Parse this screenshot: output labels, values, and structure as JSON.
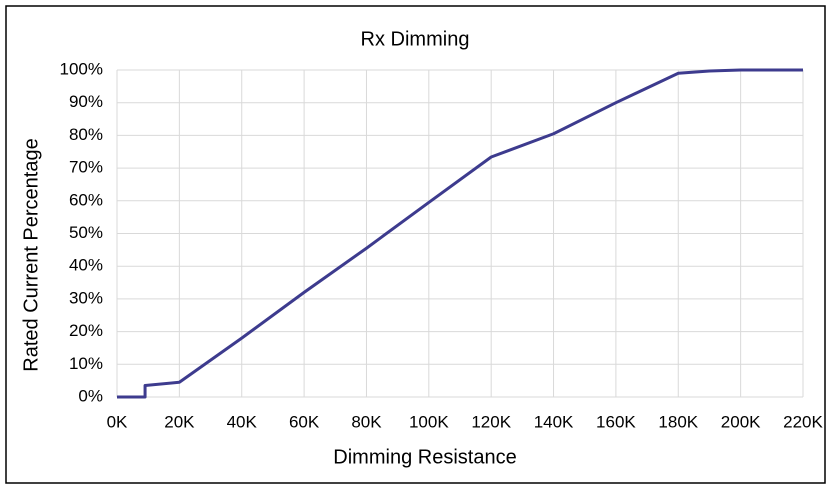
{
  "chart_data": {
    "type": "line",
    "title": "Rx Dimming",
    "xlabel": "Dimming Resistance",
    "ylabel": "Rated Current Percentage",
    "x": [
      0,
      9000,
      9000,
      20000,
      40000,
      60000,
      80000,
      100000,
      120000,
      140000,
      160000,
      180000,
      190000,
      200000,
      220000
    ],
    "series": [
      {
        "name": "Rx Dimming",
        "color": "#3d3b8e",
        "values": [
          0,
          0,
          3.5,
          4.5,
          18,
          32,
          45.5,
          59.5,
          73.4,
          80.5,
          90,
          99,
          99.7,
          100,
          100
        ]
      }
    ],
    "xlim": [
      0,
      220000
    ],
    "xticks": [
      {
        "value": 0,
        "label": "0K"
      },
      {
        "value": 20000,
        "label": "20K"
      },
      {
        "value": 40000,
        "label": "40K"
      },
      {
        "value": 60000,
        "label": "60K"
      },
      {
        "value": 80000,
        "label": "80K"
      },
      {
        "value": 100000,
        "label": "100K"
      },
      {
        "value": 120000,
        "label": "120K"
      },
      {
        "value": 140000,
        "label": "140K"
      },
      {
        "value": 160000,
        "label": "160K"
      },
      {
        "value": 180000,
        "label": "180K"
      },
      {
        "value": 200000,
        "label": "200K"
      },
      {
        "value": 220000,
        "label": "220K"
      }
    ],
    "ylim": [
      0,
      100
    ],
    "yticks": [
      {
        "value": 0,
        "label": "0%"
      },
      {
        "value": 10,
        "label": "10%"
      },
      {
        "value": 20,
        "label": "20%"
      },
      {
        "value": 30,
        "label": "30%"
      },
      {
        "value": 40,
        "label": "40%"
      },
      {
        "value": 50,
        "label": "50%"
      },
      {
        "value": 60,
        "label": "60%"
      },
      {
        "value": 70,
        "label": "70%"
      },
      {
        "value": 80,
        "label": "80%"
      },
      {
        "value": 90,
        "label": "90%"
      },
      {
        "value": 100,
        "label": "100%"
      }
    ],
    "grid": true
  }
}
